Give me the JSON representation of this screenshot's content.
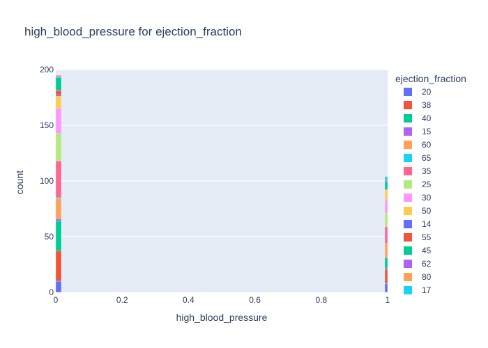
{
  "chart_data": {
    "type": "bar",
    "title": "high_blood_pressure for ejection_fraction",
    "xlabel": "high_blood_pressure",
    "ylabel": "count",
    "xlim": [
      0,
      1
    ],
    "ylim": [
      0,
      200
    ],
    "x_ticks": [
      "0",
      "0.2",
      "0.4",
      "0.6",
      "0.8",
      "1"
    ],
    "y_ticks": [
      "0",
      "50",
      "100",
      "150",
      "200"
    ],
    "categories": [
      0,
      1
    ],
    "barmode": "stack",
    "grid": true,
    "legend": {
      "title": "ejection_fraction",
      "placement": "right"
    },
    "series": [
      {
        "name": "20",
        "color": "#636efa",
        "values": [
          10,
          8
        ]
      },
      {
        "name": "38",
        "color": "#EF553B",
        "values": [
          27,
          13
        ]
      },
      {
        "name": "40",
        "color": "#00cc96",
        "values": [
          27,
          10
        ]
      },
      {
        "name": "15",
        "color": "#ab63fa",
        "values": [
          2,
          0
        ]
      },
      {
        "name": "60",
        "color": "#FFA15A",
        "values": [
          18,
          13
        ]
      },
      {
        "name": "65",
        "color": "#19d3f3",
        "values": [
          1,
          0
        ]
      },
      {
        "name": "35",
        "color": "#FF6692",
        "values": [
          33,
          15
        ]
      },
      {
        "name": "25",
        "color": "#B6E880",
        "values": [
          25,
          12
        ]
      },
      {
        "name": "30",
        "color": "#FF97FF",
        "values": [
          22,
          12
        ]
      },
      {
        "name": "50",
        "color": "#FECB52",
        "values": [
          11,
          9
        ]
      },
      {
        "name": "14",
        "color": "#636efa",
        "values": [
          1,
          0
        ]
      },
      {
        "name": "55",
        "color": "#EF553B",
        "values": [
          4,
          0
        ]
      },
      {
        "name": "45",
        "color": "#00cc96",
        "values": [
          12,
          8
        ]
      },
      {
        "name": "62",
        "color": "#ab63fa",
        "values": [
          1,
          1
        ]
      },
      {
        "name": "80",
        "color": "#FFA15A",
        "values": [
          1,
          0
        ]
      },
      {
        "name": "17",
        "color": "#19d3f3",
        "values": [
          0,
          3
        ]
      }
    ]
  }
}
